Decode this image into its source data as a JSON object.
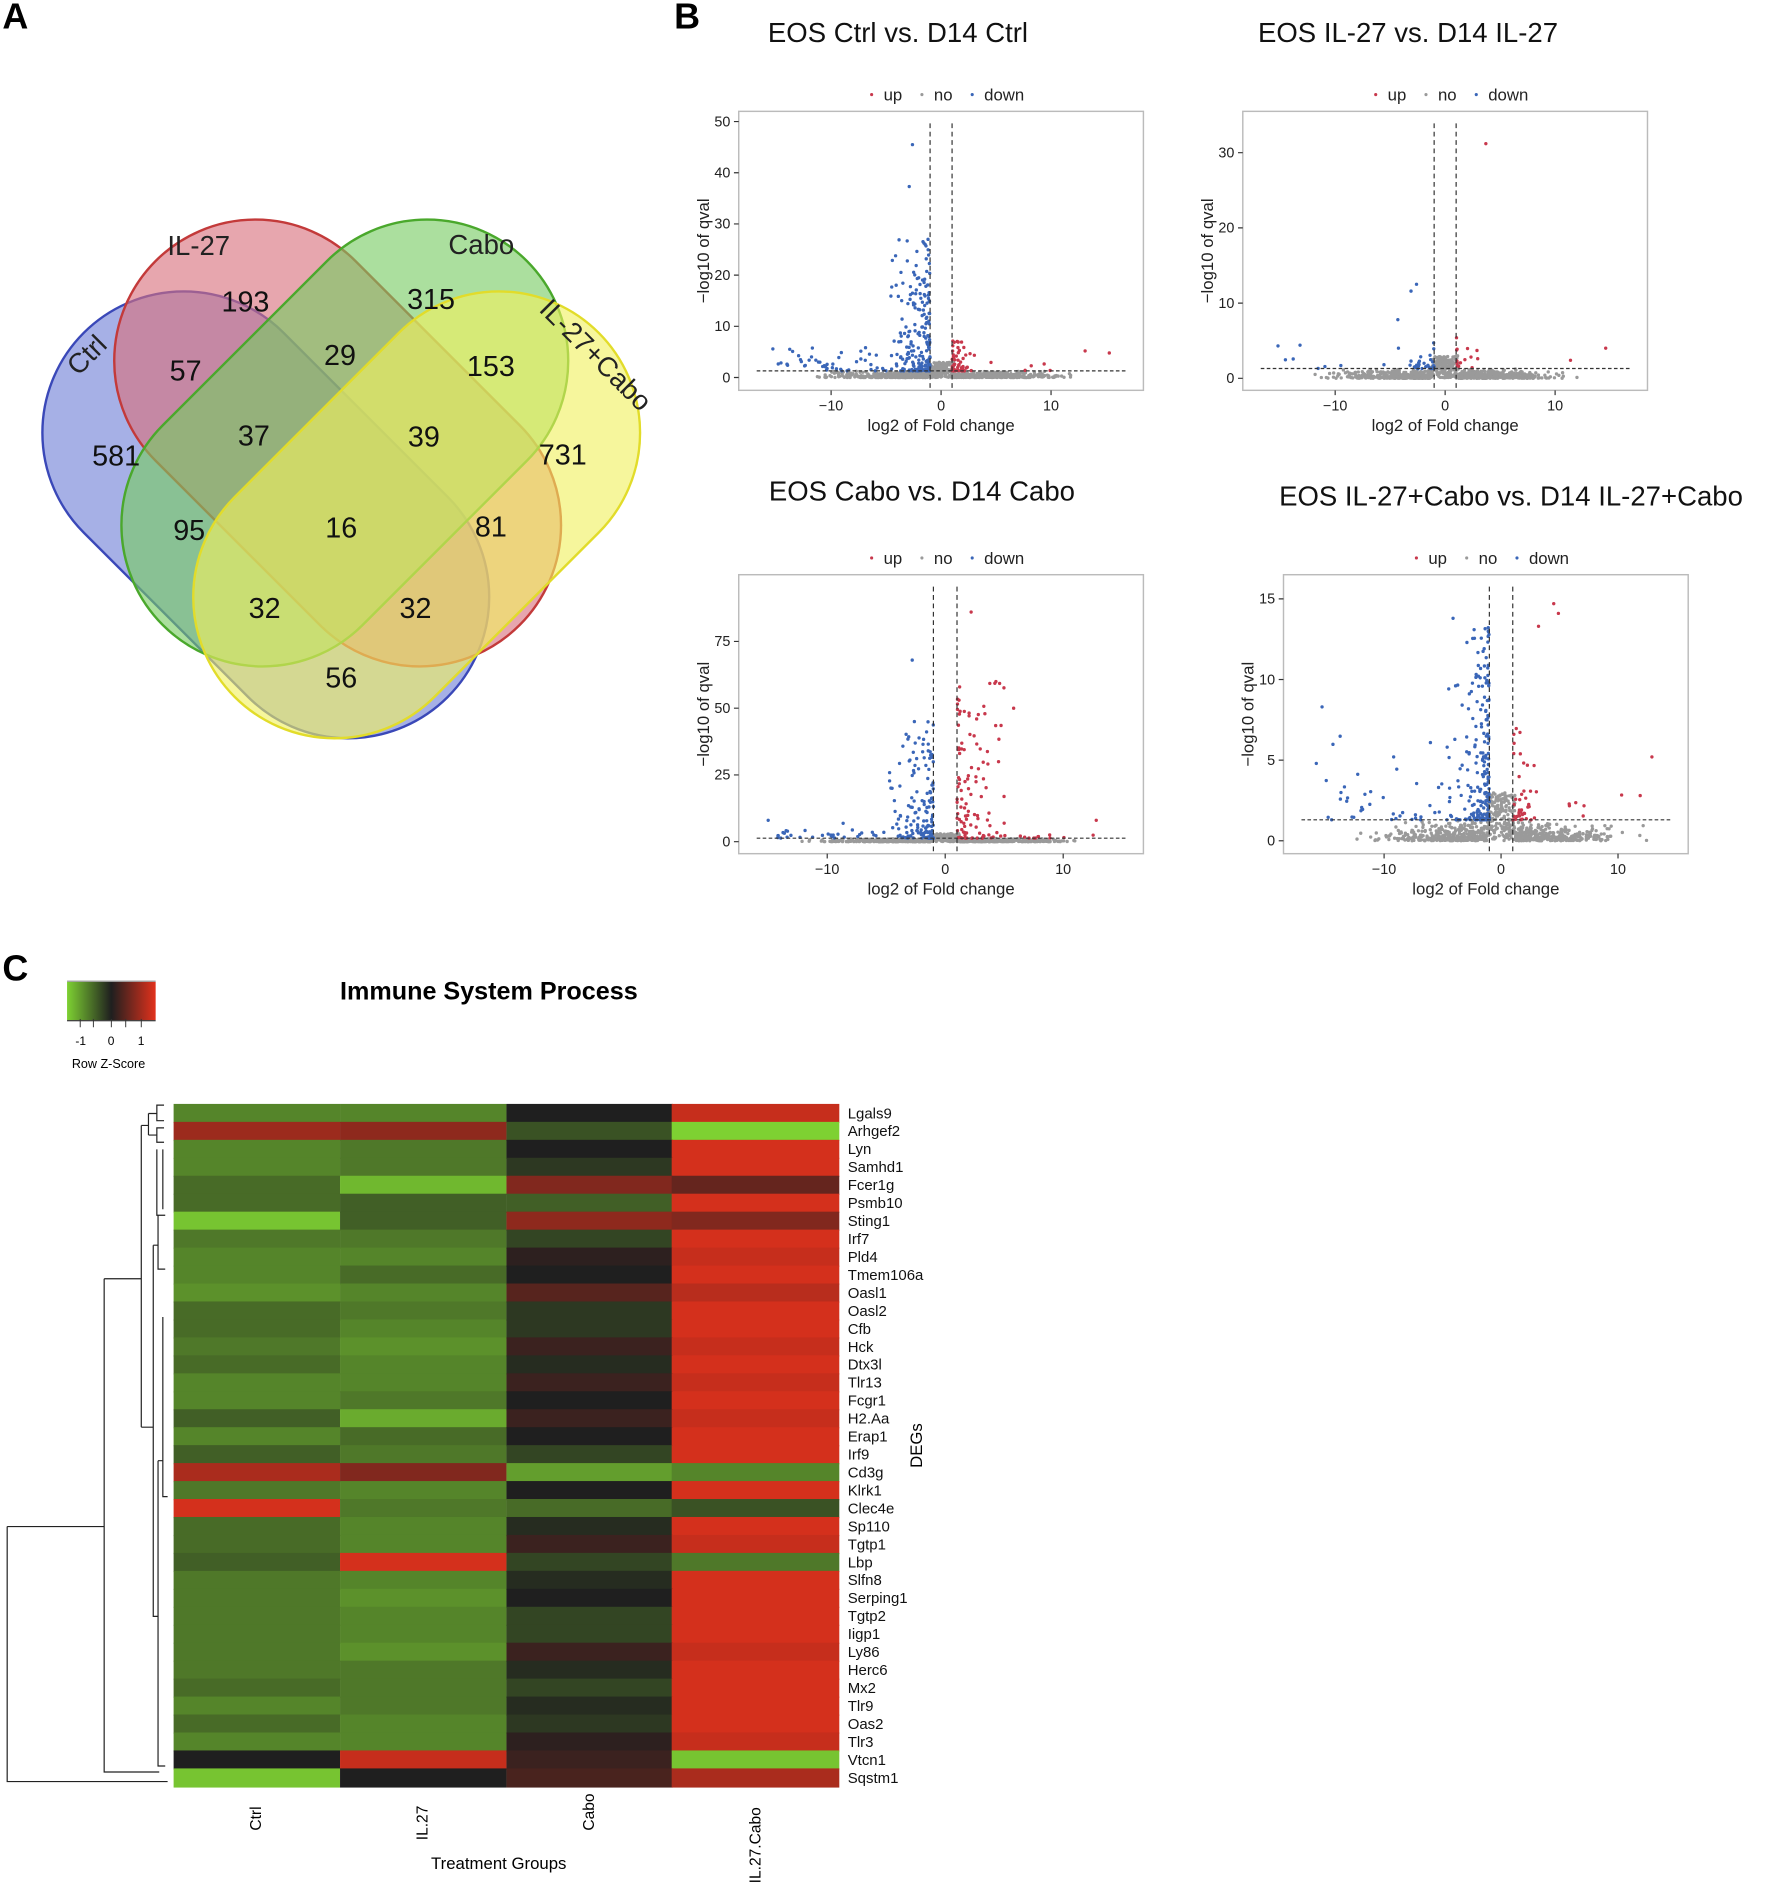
{
  "panels": {
    "a": "A",
    "b": "B",
    "c": "C"
  },
  "venn": {
    "sets": [
      {
        "name": "Ctrl",
        "color": "#6f7fd6",
        "stroke": "#3a48b8"
      },
      {
        "name": "IL-27",
        "color": "#d9707c",
        "stroke": "#c33a3a"
      },
      {
        "name": "Cabo",
        "color": "#78cc62",
        "stroke": "#4aa82c"
      },
      {
        "name": "IL-27+Cabo",
        "color": "#f0f060",
        "stroke": "#e2dc2a"
      }
    ],
    "regions": {
      "ctrl_only": "581",
      "il27_only": "193",
      "cabo_only": "315",
      "il27cabo_only": "731",
      "ctrl_il27": "57",
      "il27_cabo": "29",
      "cabo_il27cabo": "153",
      "ctrl_il27_cabo": "37",
      "il27_cabo_il27cabo": "39",
      "ctrl_cabo": "95",
      "all": "16",
      "il27_il27cabo": "81",
      "ctrl_cabo_il27cabo": "32",
      "ctrl_il27_il27cabo": "32",
      "ctrl_il27cabo": "56"
    }
  },
  "chart_data": [
    {
      "type": "scatter",
      "title": "EOS Ctrl vs. D14 Ctrl",
      "xlabel": "log2 of Fold change",
      "ylabel": "−log10 of qval",
      "legend": {
        "up": "up",
        "no": "no",
        "down": "down",
        "order": [
          "up",
          "no",
          "down"
        ],
        "placement": "top"
      },
      "series_colors": {
        "up": "#c8384c",
        "no": "#9a9a9a",
        "down": "#3a66b8"
      },
      "xlim": [
        -18.4,
        18.4
      ],
      "ylim": [
        -2.5,
        52
      ],
      "xticks": [
        -10,
        0,
        10
      ],
      "xtick_labels": [
        "−10",
        "0",
        "10"
      ],
      "yticks": [
        0,
        10,
        20,
        30,
        40,
        50
      ],
      "ytick_labels": [
        "0",
        "10",
        "20",
        "30",
        "40",
        "50"
      ],
      "thresholds": {
        "x": [
          -1,
          1
        ],
        "y": 1.3
      },
      "cloud": {
        "down_max": 27,
        "up_max": 7.5,
        "n_down": 260,
        "n_up": 60
      },
      "notable_points": [
        {
          "x": -2.6,
          "y": 45.5,
          "s": "down"
        },
        {
          "x": -2.9,
          "y": 37.3,
          "s": "down"
        },
        {
          "x": -15.3,
          "y": 5.6,
          "s": "down"
        },
        {
          "x": -13.5,
          "y": 5.1,
          "s": "down"
        },
        {
          "x": 13.1,
          "y": 5.2,
          "s": "up"
        },
        {
          "x": 15.3,
          "y": 4.8,
          "s": "up"
        },
        {
          "x": 8.2,
          "y": 2.3,
          "s": "up"
        }
      ]
    },
    {
      "type": "scatter",
      "title": "EOS IL-27 vs. D14 IL-27",
      "xlabel": "log2 of Fold change",
      "ylabel": "−log10 of qval",
      "legend": {
        "up": "up",
        "no": "no",
        "down": "down",
        "order": [
          "up",
          "no",
          "down"
        ],
        "placement": "top"
      },
      "series_colors": {
        "up": "#c8384c",
        "no": "#9a9a9a",
        "down": "#3a66b8"
      },
      "xlim": [
        -18.4,
        18.4
      ],
      "ylim": [
        -1.6,
        35.5
      ],
      "xticks": [
        -10,
        0,
        10
      ],
      "xtick_labels": [
        "−10",
        "0",
        "10"
      ],
      "yticks": [
        0,
        10,
        20,
        30
      ],
      "ytick_labels": [
        "0",
        "10",
        "20",
        "30"
      ],
      "thresholds": {
        "x": [
          -1,
          1
        ],
        "y": 1.3
      },
      "cloud": {
        "down_max": 5,
        "up_max": 5.5,
        "n_down": 40,
        "n_up": 14
      },
      "notable_points": [
        {
          "x": 3.7,
          "y": 31.2,
          "s": "up"
        },
        {
          "x": -2.6,
          "y": 12.5,
          "s": "down"
        },
        {
          "x": -3.1,
          "y": 11.6,
          "s": "down"
        },
        {
          "x": -4.3,
          "y": 7.8,
          "s": "down"
        },
        {
          "x": -15.2,
          "y": 4.3,
          "s": "down"
        },
        {
          "x": -13.2,
          "y": 4.4,
          "s": "down"
        },
        {
          "x": 14.6,
          "y": 4.0,
          "s": "up"
        },
        {
          "x": 11.4,
          "y": 2.4,
          "s": "up"
        }
      ]
    },
    {
      "type": "scatter",
      "title": "EOS Cabo vs. D14 Cabo",
      "xlabel": "log2 of Fold change",
      "ylabel": "−log10 of qval",
      "legend": {
        "up": "up",
        "no": "no",
        "down": "down",
        "order": [
          "up",
          "no",
          "down"
        ],
        "placement": "top"
      },
      "series_colors": {
        "up": "#c8384c",
        "no": "#9a9a9a",
        "down": "#3a66b8"
      },
      "xlim": [
        -17.5,
        16.8
      ],
      "ylim": [
        -4.5,
        100
      ],
      "xticks": [
        -10,
        0,
        10
      ],
      "xtick_labels": [
        "−10",
        "0",
        "10"
      ],
      "yticks": [
        0,
        25,
        50,
        75
      ],
      "ytick_labels": [
        "0",
        "25",
        "50",
        "75"
      ],
      "thresholds": {
        "x": [
          -1,
          1
        ],
        "y": 1.3
      },
      "cloud": {
        "down_max": 45,
        "up_max": 60,
        "n_down": 180,
        "n_up": 120
      },
      "notable_points": [
        {
          "x": 2.2,
          "y": 86,
          "s": "up"
        },
        {
          "x": -2.8,
          "y": 68,
          "s": "down"
        },
        {
          "x": 4.3,
          "y": 60,
          "s": "up"
        },
        {
          "x": 5.8,
          "y": 50,
          "s": "up"
        },
        {
          "x": -4.5,
          "y": 20,
          "s": "down"
        },
        {
          "x": 12.8,
          "y": 8,
          "s": "up"
        },
        {
          "x": -15,
          "y": 8,
          "s": "down"
        }
      ]
    },
    {
      "type": "scatter",
      "title": "EOS IL-27+Cabo vs. D14 IL-27+Cabo",
      "xlabel": "log2 of Fold change",
      "ylabel": "−log10 of qval",
      "legend": {
        "up": "up",
        "no": "no",
        "down": "down",
        "order": [
          "up",
          "no",
          "down"
        ],
        "placement": "top"
      },
      "series_colors": {
        "up": "#c8384c",
        "no": "#9a9a9a",
        "down": "#3a66b8"
      },
      "xlim": [
        -18.6,
        16
      ],
      "ylim": [
        -0.8,
        16.5
      ],
      "xticks": [
        -10,
        0,
        10
      ],
      "xtick_labels": [
        "−10",
        "0",
        "10"
      ],
      "yticks": [
        0,
        5,
        10,
        15
      ],
      "ytick_labels": [
        "0",
        "5",
        "10",
        "15"
      ],
      "thresholds": {
        "x": [
          -1,
          1
        ],
        "y": 1.3
      },
      "cloud": {
        "down_max": 13.5,
        "up_max": 7,
        "n_down": 260,
        "n_up": 45
      },
      "notable_points": [
        {
          "x": -4.1,
          "y": 13.8,
          "s": "down"
        },
        {
          "x": 4.5,
          "y": 14.7,
          "s": "up"
        },
        {
          "x": 4.9,
          "y": 14.1,
          "s": "up"
        },
        {
          "x": 3.2,
          "y": 13.3,
          "s": "up"
        },
        {
          "x": -15.3,
          "y": 8.3,
          "s": "down"
        },
        {
          "x": -15.8,
          "y": 4.8,
          "s": "down"
        },
        {
          "x": 12.9,
          "y": 5.2,
          "s": "up"
        },
        {
          "x": 11.9,
          "y": 2.8,
          "s": "up"
        }
      ]
    },
    {
      "type": "heatmap",
      "title": "Immune System Process",
      "xlabel": "Treatment Groups",
      "ylabel": "DEGs",
      "colorbar": {
        "label": "Row Z-Score",
        "ticks": [
          "-1",
          "0",
          "1"
        ],
        "low": "#7ed132",
        "mid": "#1f1f1f",
        "high": "#e2311c"
      },
      "columns": [
        "Ctrl",
        "IL.27",
        "Cabo",
        "IL.27.Cabo"
      ],
      "rows": [
        {
          "gene": "Lgals9",
          "z": [
            -0.8,
            -0.8,
            0.0,
            1.2
          ]
        },
        {
          "gene": "Arhgef2",
          "z": [
            0.9,
            0.8,
            -0.4,
            -1.4
          ]
        },
        {
          "gene": "Lyn",
          "z": [
            -0.8,
            -0.7,
            0.0,
            1.3
          ]
        },
        {
          "gene": "Samhd1",
          "z": [
            -0.8,
            -0.7,
            -0.2,
            1.3
          ]
        },
        {
          "gene": "Fcer1g",
          "z": [
            -0.6,
            -1.2,
            0.7,
            0.5
          ]
        },
        {
          "gene": "Psmb10",
          "z": [
            -0.6,
            -0.5,
            -0.5,
            1.3
          ]
        },
        {
          "gene": "Sting1",
          "z": [
            -1.3,
            -0.5,
            0.8,
            0.7
          ]
        },
        {
          "gene": "Irf7",
          "z": [
            -0.7,
            -0.7,
            -0.3,
            1.3
          ]
        },
        {
          "gene": "Pld4",
          "z": [
            -0.8,
            -0.8,
            0.1,
            1.2
          ]
        },
        {
          "gene": "Tmem106a",
          "z": [
            -0.8,
            -0.6,
            0.0,
            1.3
          ]
        },
        {
          "gene": "Oasl1",
          "z": [
            -0.9,
            -0.8,
            0.4,
            1.1
          ]
        },
        {
          "gene": "Oasl2",
          "z": [
            -0.6,
            -0.7,
            -0.2,
            1.3
          ]
        },
        {
          "gene": "Cfb",
          "z": [
            -0.6,
            -0.8,
            -0.2,
            1.3
          ]
        },
        {
          "gene": "Hck",
          "z": [
            -0.7,
            -0.9,
            0.2,
            1.2
          ]
        },
        {
          "gene": "Dtx3l",
          "z": [
            -0.6,
            -0.8,
            -0.1,
            1.3
          ]
        },
        {
          "gene": "Tlr13",
          "z": [
            -0.8,
            -0.8,
            0.2,
            1.2
          ]
        },
        {
          "gene": "Fcgr1",
          "z": [
            -0.8,
            -0.7,
            0.0,
            1.3
          ]
        },
        {
          "gene": "H2.Aa",
          "z": [
            -0.5,
            -1.1,
            0.2,
            1.2
          ]
        },
        {
          "gene": "Erap1",
          "z": [
            -0.8,
            -0.6,
            0.0,
            1.3
          ]
        },
        {
          "gene": "Irf9",
          "z": [
            -0.5,
            -0.7,
            -0.3,
            1.3
          ]
        },
        {
          "gene": "Cd3g",
          "z": [
            1.0,
            0.7,
            -1.0,
            -0.8
          ]
        },
        {
          "gene": "Klrk1",
          "z": [
            -0.7,
            -0.8,
            0.0,
            1.3
          ]
        },
        {
          "gene": "Clec4e",
          "z": [
            1.3,
            -0.7,
            -0.6,
            -0.4
          ]
        },
        {
          "gene": "Sp110",
          "z": [
            -0.6,
            -0.8,
            -0.1,
            1.3
          ]
        },
        {
          "gene": "Tgtp1",
          "z": [
            -0.6,
            -0.8,
            0.2,
            1.2
          ]
        },
        {
          "gene": "Lbp",
          "z": [
            -0.5,
            1.3,
            -0.3,
            -0.7
          ]
        },
        {
          "gene": "Slfn8",
          "z": [
            -0.7,
            -0.8,
            -0.1,
            1.3
          ]
        },
        {
          "gene": "Serping1",
          "z": [
            -0.7,
            -0.9,
            0.0,
            1.3
          ]
        },
        {
          "gene": "Tgtp2",
          "z": [
            -0.7,
            -0.8,
            -0.3,
            1.3
          ]
        },
        {
          "gene": "Iigp1",
          "z": [
            -0.7,
            -0.8,
            -0.3,
            1.3
          ]
        },
        {
          "gene": "Ly86",
          "z": [
            -0.7,
            -0.9,
            0.2,
            1.2
          ]
        },
        {
          "gene": "Herc6",
          "z": [
            -0.7,
            -0.7,
            -0.1,
            1.3
          ]
        },
        {
          "gene": "Mx2",
          "z": [
            -0.6,
            -0.7,
            -0.3,
            1.3
          ]
        },
        {
          "gene": "Tlr9",
          "z": [
            -0.8,
            -0.7,
            -0.1,
            1.3
          ]
        },
        {
          "gene": "Oas2",
          "z": [
            -0.6,
            -0.8,
            -0.2,
            1.3
          ]
        },
        {
          "gene": "Tlr3",
          "z": [
            -0.8,
            -0.8,
            0.1,
            1.2
          ]
        },
        {
          "gene": "Vtcn1",
          "z": [
            0.0,
            1.2,
            0.2,
            -1.3
          ]
        },
        {
          "gene": "Sqstm1",
          "z": [
            -1.3,
            0.0,
            0.3,
            1.0
          ]
        }
      ]
    }
  ]
}
